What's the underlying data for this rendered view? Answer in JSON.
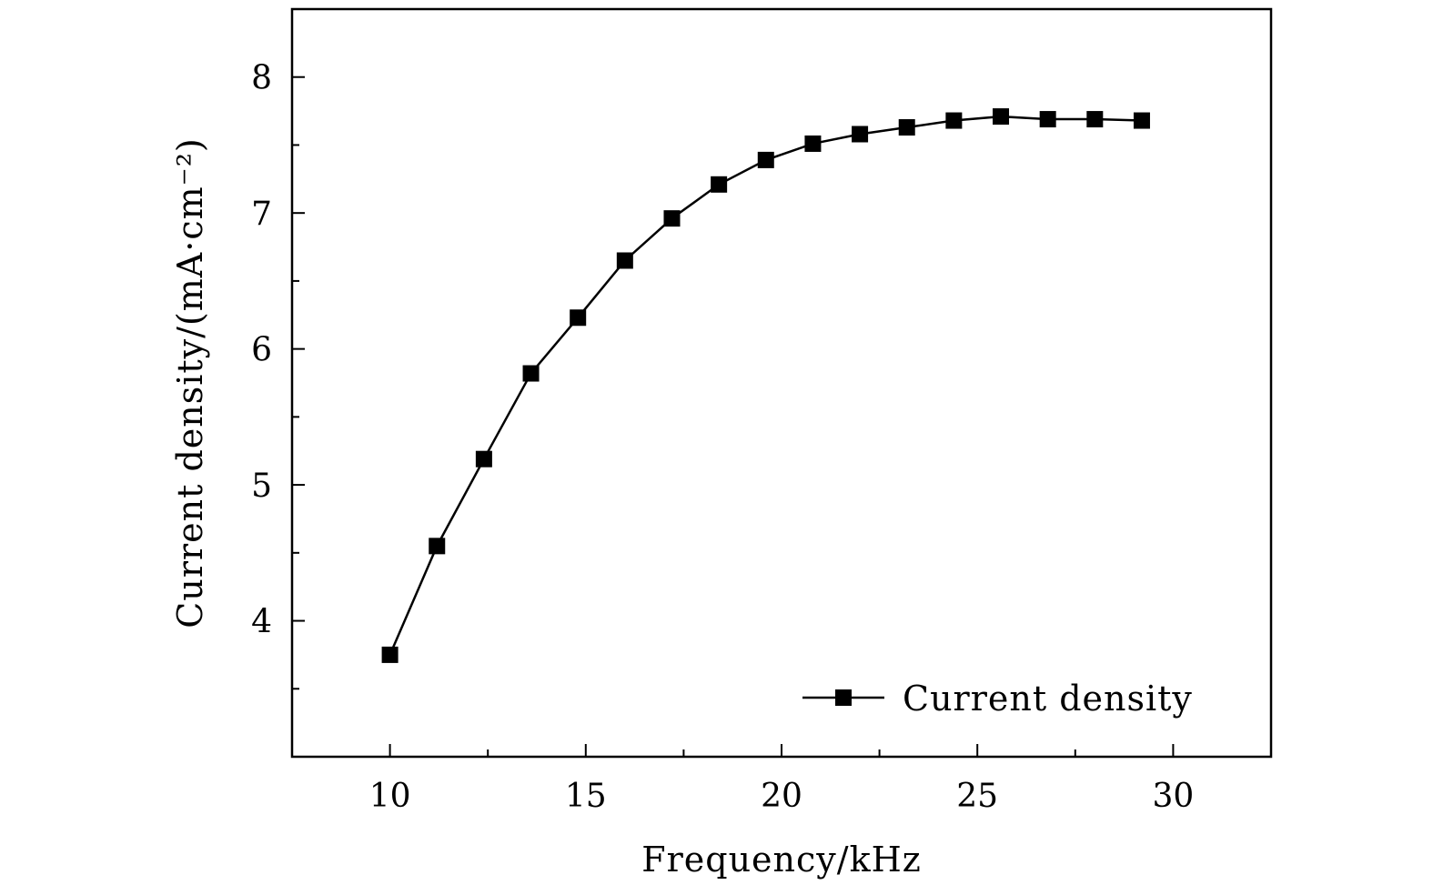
{
  "chart_data": {
    "type": "line",
    "title": "",
    "xlabel": "Frequency/kHz",
    "ylabel": "Current density/(mA·cm⁻²)",
    "xlim": [
      7.5,
      32.5
    ],
    "ylim": [
      3.0,
      8.5
    ],
    "xticks": [
      10,
      15,
      20,
      25,
      30
    ],
    "yticks": [
      4,
      5,
      6,
      7,
      8
    ],
    "xtick_labels": [
      "10",
      "15",
      "20",
      "25",
      "30"
    ],
    "ytick_labels": [
      "4",
      "5",
      "6",
      "7",
      "8"
    ],
    "grid": false,
    "legend_position": "bottom-right",
    "series": [
      {
        "name": "Current density",
        "marker": "square",
        "color": "#000000",
        "x": [
          10,
          11.2,
          12.4,
          13.6,
          14.8,
          16,
          17.2,
          18.4,
          19.6,
          20.8,
          22,
          23.2,
          24.4,
          25.6,
          26.8,
          28,
          29.2
        ],
        "y": [
          3.75,
          4.55,
          5.19,
          5.82,
          6.23,
          6.65,
          6.96,
          7.21,
          7.39,
          7.51,
          7.58,
          7.63,
          7.68,
          7.71,
          7.69,
          7.69,
          7.68
        ]
      }
    ]
  }
}
